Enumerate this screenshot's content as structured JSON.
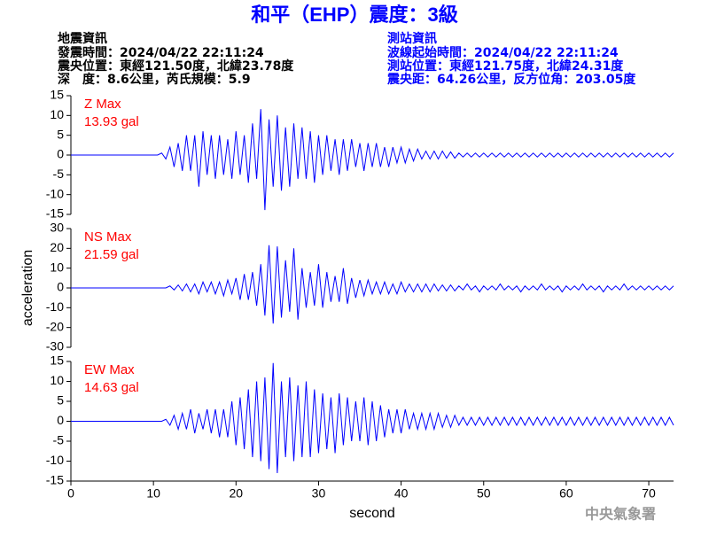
{
  "header": {
    "title": "和平（EHP）震度：3級",
    "left": [
      "地震資訊",
      "發震時間：2024/04/22 22:11:24",
      "震央位置：東經121.50度，北緯23.78度",
      "深　度：8.6公里，芮氏規模：5.9"
    ],
    "right": [
      "測站資訊",
      "波線起始時間：2024/04/22 22:11:24",
      "測站位置：東經121.75度，北緯24.31度",
      "震央距：64.26公里，反方位角：203.05度"
    ]
  },
  "footer": "中央氣象署",
  "chart_data": [
    {
      "type": "line",
      "color": "#0000ff",
      "annotation_color": "#ff0000",
      "annotations": [
        "Z Max",
        "13.93 gal"
      ],
      "xlim": [
        0,
        73
      ],
      "ylim": [
        -15,
        15
      ],
      "yticks": [
        -15,
        -10,
        -5,
        0,
        5,
        10,
        15
      ],
      "x": [
        0,
        0.5,
        1,
        1.5,
        2,
        2.5,
        3,
        3.5,
        4,
        4.5,
        5,
        5.5,
        6,
        6.5,
        7,
        7.5,
        8,
        8.5,
        9,
        9.5,
        10,
        10.5,
        11,
        11.5,
        12,
        12.5,
        13,
        13.5,
        14,
        14.5,
        15,
        15.5,
        16,
        16.5,
        17,
        17.5,
        18,
        18.5,
        19,
        19.5,
        20,
        20.5,
        21,
        21.5,
        22,
        22.5,
        23,
        23.5,
        24,
        24.5,
        25,
        25.5,
        26,
        26.5,
        27,
        27.5,
        28,
        28.5,
        29,
        29.5,
        30,
        30.5,
        31,
        31.5,
        32,
        32.5,
        33,
        33.5,
        34,
        34.5,
        35,
        35.5,
        36,
        36.5,
        37,
        37.5,
        38,
        38.5,
        39,
        39.5,
        40,
        40.5,
        41,
        41.5,
        42,
        42.5,
        43,
        43.5,
        44,
        44.5,
        45,
        45.5,
        46,
        46.5,
        47,
        47.5,
        48,
        48.5,
        49,
        49.5,
        50,
        50.5,
        51,
        51.5,
        52,
        52.5,
        53,
        53.5,
        54,
        54.5,
        55,
        55.5,
        56,
        56.5,
        57,
        57.5,
        58,
        58.5,
        59,
        59.5,
        60,
        60.5,
        61,
        61.5,
        62,
        62.5,
        63,
        63.5,
        64,
        64.5,
        65,
        65.5,
        66,
        66.5,
        67,
        67.5,
        68,
        68.5,
        69,
        69.5,
        70,
        70.5,
        71,
        71.5,
        72,
        72.5,
        73
      ],
      "values": [
        0,
        0,
        0,
        0,
        0,
        0,
        0,
        0,
        0,
        0,
        0,
        0,
        0,
        0,
        0,
        0,
        0,
        0,
        0,
        0,
        0,
        0,
        0.5,
        -1,
        2,
        -3,
        3,
        -4,
        5,
        -4,
        5,
        -8,
        6,
        -5,
        5,
        -6,
        5,
        -5,
        4,
        -6,
        6,
        -5,
        5,
        -7,
        8,
        -6,
        11.6,
        -13.9,
        9,
        -8,
        10,
        -9,
        7,
        -8,
        8,
        -6,
        7,
        -6,
        6,
        -7,
        5,
        -5,
        5,
        -4,
        4,
        -5,
        4,
        -4,
        4,
        -3,
        3,
        -4,
        3,
        -3,
        3,
        -3,
        2,
        -3,
        2,
        -2,
        2,
        -2,
        1.5,
        -1.5,
        1.5,
        -1,
        1,
        -1,
        1,
        -1,
        1,
        -0.8,
        0.8,
        -0.8,
        0.5,
        -0.5,
        0.5,
        -0.5,
        0.5,
        -0.5,
        0.5,
        -0.5,
        0.5,
        -0.5,
        0.5,
        -0.5,
        0.5,
        -0.5,
        0.5,
        -0.5,
        0.5,
        -0.5,
        0.5,
        -0.5,
        0.5,
        -0.5,
        0.5,
        -0.5,
        0.5,
        -0.5,
        0.5,
        -0.5,
        0.5,
        -0.5,
        0.5,
        -0.5,
        0.5,
        -0.5,
        0.5,
        -0.5,
        0.5,
        -0.5,
        0.5,
        -0.5,
        0.5,
        -0.5,
        0.5,
        -0.5,
        0.5,
        -0.5,
        0.5,
        -0.5,
        0.5,
        -0.5,
        0.5,
        -0.5,
        0.5
      ]
    },
    {
      "type": "line",
      "color": "#0000ff",
      "annotation_color": "#ff0000",
      "annotations": [
        "NS Max",
        "21.59 gal"
      ],
      "y_label": "acceleration",
      "xlim": [
        0,
        73
      ],
      "ylim": [
        -30,
        30
      ],
      "yticks": [
        -30,
        -20,
        -10,
        0,
        10,
        20,
        30
      ],
      "x": [
        0,
        0.5,
        1,
        1.5,
        2,
        2.5,
        3,
        3.5,
        4,
        4.5,
        5,
        5.5,
        6,
        6.5,
        7,
        7.5,
        8,
        8.5,
        9,
        9.5,
        10,
        10.5,
        11,
        11.5,
        12,
        12.5,
        13,
        13.5,
        14,
        14.5,
        15,
        15.5,
        16,
        16.5,
        17,
        17.5,
        18,
        18.5,
        19,
        19.5,
        20,
        20.5,
        21,
        21.5,
        22,
        22.5,
        23,
        23.5,
        24,
        24.5,
        25,
        25.5,
        26,
        26.5,
        27,
        27.5,
        28,
        28.5,
        29,
        29.5,
        30,
        30.5,
        31,
        31.5,
        32,
        32.5,
        33,
        33.5,
        34,
        34.5,
        35,
        35.5,
        36,
        36.5,
        37,
        37.5,
        38,
        38.5,
        39,
        39.5,
        40,
        40.5,
        41,
        41.5,
        42,
        42.5,
        43,
        43.5,
        44,
        44.5,
        45,
        45.5,
        46,
        46.5,
        47,
        47.5,
        48,
        48.5,
        49,
        49.5,
        50,
        50.5,
        51,
        51.5,
        52,
        52.5,
        53,
        53.5,
        54,
        54.5,
        55,
        55.5,
        56,
        56.5,
        57,
        57.5,
        58,
        58.5,
        59,
        59.5,
        60,
        60.5,
        61,
        61.5,
        62,
        62.5,
        63,
        63.5,
        64,
        64.5,
        65,
        65.5,
        66,
        66.5,
        67,
        67.5,
        68,
        68.5,
        69,
        69.5,
        70,
        70.5,
        71,
        71.5,
        72,
        72.5,
        73
      ],
      "values": [
        0,
        0,
        0,
        0,
        0,
        0,
        0,
        0,
        0,
        0,
        0,
        0,
        0,
        0,
        0,
        0,
        0,
        0,
        0,
        0,
        0,
        0,
        0,
        0,
        1,
        -1,
        1.5,
        -1.5,
        2,
        -2,
        2,
        -3,
        3,
        -2,
        3,
        -3,
        3,
        -4,
        4,
        -3,
        5,
        -6,
        7,
        -6,
        8,
        -9,
        12,
        -14,
        21.6,
        -18,
        21,
        -15,
        14,
        -12,
        20,
        -16,
        10,
        -10,
        8,
        -9,
        12,
        -10,
        8,
        -7,
        6,
        -7,
        10,
        -8,
        5,
        -5,
        4,
        -4,
        4,
        -3,
        3,
        -3,
        3,
        -3,
        2,
        -3,
        3,
        -2,
        2,
        -2,
        2,
        -2,
        2,
        -2,
        2,
        -1.5,
        1.5,
        -1.5,
        1.5,
        -1.5,
        1,
        -1,
        2,
        -1,
        1,
        -2,
        1,
        -1,
        1,
        -1,
        2,
        -1,
        1,
        -1,
        1,
        -2,
        1,
        -1,
        1,
        -1,
        2,
        -1,
        1,
        -1,
        1,
        -2,
        1,
        -1,
        1,
        -1,
        2,
        -1,
        1,
        -1,
        1,
        -2,
        1,
        -1,
        1,
        -1,
        2,
        -1,
        1,
        -1,
        1,
        -1,
        1,
        -1,
        1,
        -1,
        1,
        -1,
        1
      ]
    },
    {
      "type": "line",
      "color": "#0000ff",
      "annotation_color": "#ff0000",
      "annotations": [
        "EW Max",
        "14.63 gal"
      ],
      "x_label": "second",
      "xlim": [
        0,
        73
      ],
      "xticks": [
        0,
        10,
        20,
        30,
        40,
        50,
        60,
        70
      ],
      "ylim": [
        -15,
        15
      ],
      "yticks": [
        -15,
        -10,
        -5,
        0,
        5,
        10,
        15
      ],
      "x": [
        0,
        0.5,
        1,
        1.5,
        2,
        2.5,
        3,
        3.5,
        4,
        4.5,
        5,
        5.5,
        6,
        6.5,
        7,
        7.5,
        8,
        8.5,
        9,
        9.5,
        10,
        10.5,
        11,
        11.5,
        12,
        12.5,
        13,
        13.5,
        14,
        14.5,
        15,
        15.5,
        16,
        16.5,
        17,
        17.5,
        18,
        18.5,
        19,
        19.5,
        20,
        20.5,
        21,
        21.5,
        22,
        22.5,
        23,
        23.5,
        24,
        24.5,
        25,
        25.5,
        26,
        26.5,
        27,
        27.5,
        28,
        28.5,
        29,
        29.5,
        30,
        30.5,
        31,
        31.5,
        32,
        32.5,
        33,
        33.5,
        34,
        34.5,
        35,
        35.5,
        36,
        36.5,
        37,
        37.5,
        38,
        38.5,
        39,
        39.5,
        40,
        40.5,
        41,
        41.5,
        42,
        42.5,
        43,
        43.5,
        44,
        44.5,
        45,
        45.5,
        46,
        46.5,
        47,
        47.5,
        48,
        48.5,
        49,
        49.5,
        50,
        50.5,
        51,
        51.5,
        52,
        52.5,
        53,
        53.5,
        54,
        54.5,
        55,
        55.5,
        56,
        56.5,
        57,
        57.5,
        58,
        58.5,
        59,
        59.5,
        60,
        60.5,
        61,
        61.5,
        62,
        62.5,
        63,
        63.5,
        64,
        64.5,
        65,
        65.5,
        66,
        66.5,
        67,
        67.5,
        68,
        68.5,
        69,
        69.5,
        70,
        70.5,
        71,
        71.5,
        72,
        72.5,
        73
      ],
      "values": [
        0,
        0,
        0,
        0,
        0,
        0,
        0,
        0,
        0,
        0,
        0,
        0,
        0,
        0,
        0,
        0,
        0,
        0,
        0,
        0,
        0,
        0,
        0,
        0.5,
        -1,
        1.5,
        -2,
        2,
        -2,
        3,
        -3,
        2,
        -2,
        3,
        -3,
        3,
        -4,
        3,
        -4,
        5,
        -6,
        6,
        -7,
        8,
        -9,
        10,
        -10,
        11,
        -12,
        14.6,
        -13,
        10,
        -9,
        11,
        -10,
        9,
        -9,
        10,
        -9,
        8,
        -8,
        7,
        -7,
        6,
        -8,
        7,
        -6,
        6,
        -5,
        5,
        -5,
        6,
        -6,
        5,
        -5,
        4,
        -4,
        3,
        -3,
        3,
        -3,
        3,
        -2,
        2,
        -2,
        2,
        -2,
        2,
        -2,
        2,
        -1.5,
        1.5,
        -1.5,
        1.5,
        -1,
        1,
        -1,
        1,
        -1,
        1,
        -1,
        1,
        -1,
        1,
        -1,
        1,
        -1,
        1,
        -1,
        1,
        -1,
        1,
        -1,
        1,
        -1,
        1,
        -1,
        1,
        -1,
        1,
        -1,
        1,
        -1,
        1,
        -1,
        1,
        -1,
        1,
        -1,
        1,
        -1,
        1,
        -1,
        1,
        -1,
        1,
        -1,
        1,
        -1,
        1,
        -1,
        1,
        -1,
        1,
        -1,
        1,
        -1
      ]
    }
  ]
}
